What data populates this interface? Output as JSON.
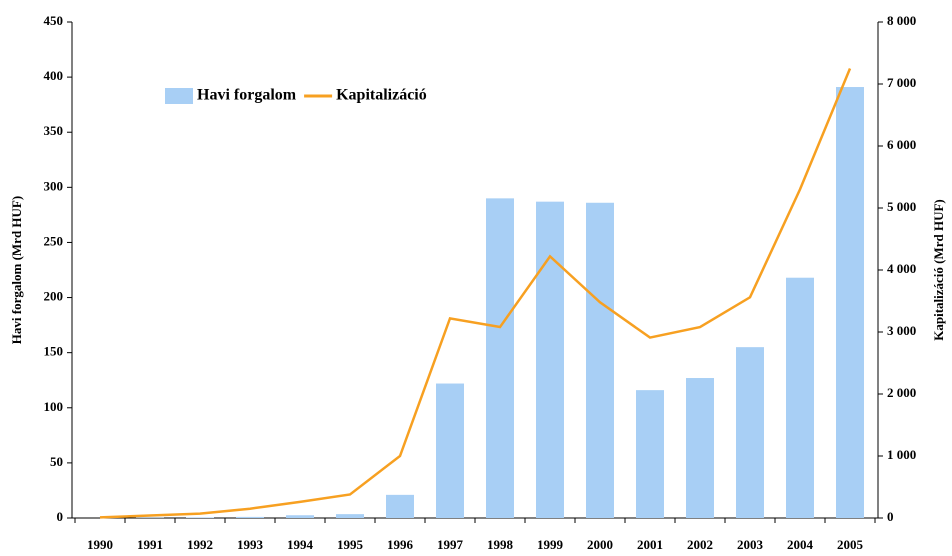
{
  "chart_data": {
    "type": "bar",
    "y_label": "Havi forgalom (Mrd HUF)",
    "y2_label": "Kapitalizáció (Mrd HUF)",
    "categories": [
      "1990",
      "1991",
      "1992",
      "1993",
      "1994",
      "1995",
      "1996",
      "1997",
      "1998",
      "1999",
      "2000",
      "2001",
      "2002",
      "2003",
      "2004",
      "2005"
    ],
    "series": [
      {
        "name": "Havi forgalom",
        "color": "#a8cff5",
        "values": [
          0,
          0.3,
          0.5,
          1,
          2.5,
          3.5,
          21,
          122,
          290,
          287,
          286,
          116,
          127,
          155,
          218,
          391
        ]
      },
      {
        "name": "Kapitalizáció",
        "color": "#f7a021",
        "type": "line",
        "axis": "y2",
        "values": [
          10,
          40,
          70,
          150,
          260,
          380,
          1000,
          3220,
          3080,
          4220,
          3480,
          2910,
          3080,
          3560,
          5300,
          7250
        ]
      }
    ],
    "ylim": [
      0,
      450
    ],
    "yticks": [
      0,
      50,
      100,
      150,
      200,
      250,
      300,
      350,
      400,
      450
    ],
    "y2lim": [
      0,
      8000
    ],
    "y2ticks": [
      0,
      {
        "value": 1000,
        "label": "1 000"
      },
      {
        "value": 2000,
        "label": "2 000"
      },
      {
        "value": 3000,
        "label": "3 000"
      },
      {
        "value": 4000,
        "label": "4 000"
      },
      {
        "value": 5000,
        "label": "5 000"
      },
      {
        "value": 6000,
        "label": "6 000"
      },
      {
        "value": 7000,
        "label": "7 000"
      },
      {
        "value": 8000,
        "label": "8 000"
      }
    ],
    "legend": "top-left"
  }
}
